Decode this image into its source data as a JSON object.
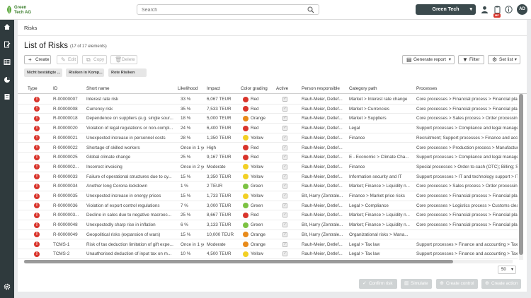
{
  "app": {
    "logo_line1": "Green",
    "logo_line2": "Tech AG",
    "tenant": "Green Tech",
    "notification_badge": "MF",
    "avatar": "AD"
  },
  "search": {
    "placeholder": "Search"
  },
  "breadcrumb": "Risks",
  "page": {
    "title": "List of Risks",
    "count": "(17 of 17 elements)"
  },
  "toolbar": {
    "create": "Create",
    "edit": "Edit",
    "copy": "Copy",
    "delete": "Delete",
    "generate_report": "Generate report",
    "filter": "Filter",
    "set_list": "Set list"
  },
  "filters": [
    "Nicht bestätigte ...",
    "Risiken in Komp...",
    "Rote Risiken"
  ],
  "table": {
    "headers": [
      "Type",
      "ID",
      "Short name",
      "Likelihood",
      "Impact",
      "Color grading",
      "Active",
      "Person responsible",
      "Category path",
      "Processes"
    ],
    "rows": [
      {
        "id": "R-00000007",
        "name": "Interest rate risk",
        "likelihood": "33 %",
        "impact": "6,067 TEUR",
        "color": "Red",
        "person": "Rauh-Meier, Detlef...",
        "category": "Market > Interest rate change",
        "process": "Core processes > Financial process > Financial planning"
      },
      {
        "id": "R-00000008",
        "name": "Currency risk",
        "likelihood": "35 %",
        "impact": "7,533 TEUR",
        "color": "Red",
        "person": "Rauh-Meier, Detlef...",
        "category": "Market > Currencies",
        "process": "Core processes > Financial process > Financial planning"
      },
      {
        "id": "R-00000018",
        "name": "Dependence on suppliers (e.g. single sour...",
        "likelihood": "18 %",
        "impact": "5,000 TEUR",
        "color": "Orange",
        "person": "Rauh-Meier, Detlef...",
        "category": "Market > Suppliers",
        "process": "Core processes > Sales process > Order processing"
      },
      {
        "id": "R-00000020",
        "name": "Violation of legal regulations or non-compl...",
        "likelihood": "24 %",
        "impact": "6,400 TEUR",
        "color": "Red",
        "person": "Rauh-Meier, Detlef...",
        "category": "Legal",
        "process": "Support processes > Compliance and legal management"
      },
      {
        "id": "R-00000021",
        "name": "Unexpected increase in personnel costs",
        "likelihood": "28 %",
        "impact": "1,350 TEUR",
        "color": "Yellow",
        "person": "Rauh-Meier, Detlef...",
        "category": "Finance",
        "process": "Recruitment; Support processes > Finance and accounting"
      },
      {
        "id": "R-00000022",
        "name": "Shortage of skilled workers",
        "likelihood": "Once in 1 ye",
        "impact": "High",
        "color": "Red",
        "person": "Rauh-Meier, Detlef...",
        "category": "",
        "process": "Core processes > Production process > Manufacturing"
      },
      {
        "id": "R-00000025",
        "name": "Global climate change",
        "likelihood": "25 %",
        "impact": "9,167 TEUR",
        "color": "Red",
        "person": "Rauh-Meier, Detlef...",
        "category": "E - Economic > Climate Cha...",
        "process": "Support processes > Compliance and legal management"
      },
      {
        "id": "R-0000002...",
        "name": "Incorrect invoicing",
        "likelihood": "Once in 2 ye",
        "impact": "Moderate",
        "color": "Yellow",
        "person": "Rauh-Meier, Detlef...",
        "category": "Finance",
        "process": "Special processes > Order-to-cash (OTC); Billing; Sup..."
      },
      {
        "id": "R-00000033",
        "name": "Failure of operational structures due to cy...",
        "likelihood": "15 %",
        "impact": "3,350 TEUR",
        "color": "Yellow",
        "person": "Rauh-Meier, Detlef...",
        "category": "Information security and IT",
        "process": "Support processes > IT and technology support > IT"
      },
      {
        "id": "R-00000034",
        "name": "Another long Corona lockdown",
        "likelihood": "1 %",
        "impact": "2 TEUR",
        "color": "Green",
        "person": "Rauh-Meier, Detlef...",
        "category": "Market; Finance > Liquidity n...",
        "process": "Core processes > Sales process > Order processing"
      },
      {
        "id": "R-00000035",
        "name": "Unexpected increase in energy prices",
        "likelihood": "15 %",
        "impact": "1,733 TEUR",
        "color": "Yellow",
        "person": "Bit, Harry (Zentrale...",
        "category": "Finance > Market price risks",
        "process": "Core processes > Financial process > Financial planning"
      },
      {
        "id": "R-00000036",
        "name": "Violation of export control regulations",
        "likelihood": "7 %",
        "impact": "3,000 TEUR",
        "color": "Green",
        "person": "Rauh-Meier, Detlef...",
        "category": "Legal > Compliance",
        "process": "Core processes > Logistics process > Customs clearance"
      },
      {
        "id": "R-0000003...",
        "name": "Decline in sales due to negative macroec...",
        "likelihood": "25 %",
        "impact": "8,667 TEUR",
        "color": "Red",
        "person": "Rauh-Meier, Detlef...",
        "category": "Market; Finance > Liquidity n...",
        "process": "Core processes > Financial process > Financial planning"
      },
      {
        "id": "R-00000048",
        "name": "Unexpectedly sharp rise in inflation",
        "likelihood": "6 %",
        "impact": "3,133 TEUR",
        "color": "Green",
        "person": "Bit, Harry (Zentrale...",
        "category": "Market; Finance > Liquidity n...",
        "process": "Core processes > Financial process > Financial planning"
      },
      {
        "id": "R-00000049",
        "name": "Geopolitical risks (expansion of wars)",
        "likelihood": "15 %",
        "impact": "10,000 TEUR",
        "color": "Orange",
        "person": "Bit, Harry (Zentrale...",
        "category": "Organizational risks > Mana...",
        "process": ""
      },
      {
        "id": "TCMS-1",
        "name": "Risk of tax deduction limitation of gift expe...",
        "likelihood": "Once in 1 ye",
        "impact": "Moderate",
        "color": "Orange",
        "person": "Rauh-Meier, Detlef...",
        "category": "Legal > Tax law",
        "process": "Support processes > Finance and accounting > Tax c..."
      },
      {
        "id": "TCMS-2",
        "name": "Unauthorised deduction of input tax on m...",
        "likelihood": "10 %",
        "impact": "4,500 TEUR",
        "color": "Yellow",
        "person": "Rauh-Meier, Detlef...",
        "category": "Legal > Tax law",
        "process": "Support processes > Finance and accounting > Tax c..."
      }
    ]
  },
  "colors": {
    "Red": "#d9342b",
    "Orange": "#e88a1a",
    "Yellow": "#f2d024",
    "Green": "#7cc242"
  },
  "pagination": {
    "page_size": "50"
  },
  "actions": {
    "confirm_risk": "Confirm risk",
    "simulate": "Simulate",
    "create_control": "Create control",
    "create_action": "Create action"
  }
}
